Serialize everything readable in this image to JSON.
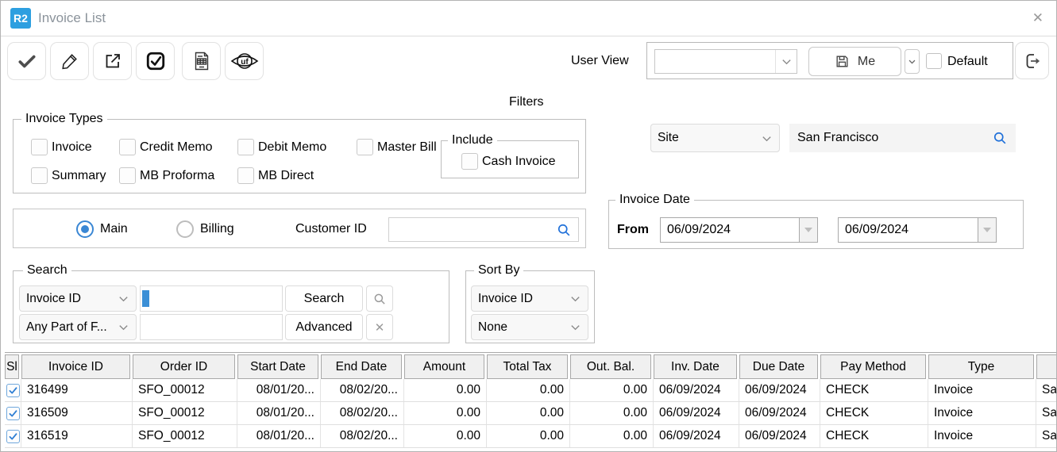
{
  "window": {
    "logo": "R2",
    "title": "Invoice List",
    "close_icon": "✕"
  },
  "toolbar": {
    "icons": [
      "approve-check",
      "edit-pencil",
      "open-external",
      "multi-select-checkbox",
      "invoice-document",
      "uf-view-eye"
    ],
    "user_view": {
      "label": "User View",
      "dropdown_value": "",
      "save_button_label": "Me",
      "default_checkbox_label": "Default",
      "default_checked": false
    }
  },
  "filters": {
    "heading": "Filters",
    "invoice_types": {
      "legend": "Invoice Types",
      "options": [
        {
          "label": "Invoice",
          "checked": false
        },
        {
          "label": "Credit Memo",
          "checked": false
        },
        {
          "label": "Debit Memo",
          "checked": false
        },
        {
          "label": "Master Bill",
          "checked": false
        },
        {
          "label": "Summary",
          "checked": false
        },
        {
          "label": "MB Proforma",
          "checked": false
        },
        {
          "label": "MB Direct",
          "checked": false
        }
      ],
      "include": {
        "legend": "Include",
        "option_label": "Cash Invoice",
        "checked": false
      }
    },
    "site": {
      "dropdown_value": "Site",
      "value": "San Francisco"
    },
    "view_mode": {
      "options": [
        {
          "label": "Main",
          "selected": true
        },
        {
          "label": "Billing",
          "selected": false
        }
      ]
    },
    "customer": {
      "label": "Customer ID",
      "value": ""
    },
    "invoice_date": {
      "legend": "Invoice Date",
      "from_label": "From",
      "from_value": "06/09/2024",
      "to_value": "06/09/2024"
    }
  },
  "search": {
    "legend": "Search",
    "field_dropdown_value": "Invoice ID",
    "match_dropdown_value": "Any Part of F...",
    "input1_value": "",
    "input2_value": "",
    "search_button": "Search",
    "advanced_button": "Advanced",
    "clear_icon": "✕"
  },
  "sort_by": {
    "legend": "Sort By",
    "primary_value": "Invoice ID",
    "secondary_value": "None"
  },
  "table": {
    "headers": [
      "Sl",
      "Invoice ID",
      "Order ID",
      "Start Date",
      "End Date",
      "Amount",
      "Total Tax",
      "Out. Bal.",
      "Inv. Date",
      "Due Date",
      "Pay Method",
      "Type",
      ""
    ],
    "rows": [
      {
        "checked": true,
        "cells": [
          "316499",
          "SFO_00012",
          "08/01/20...",
          "08/02/20...",
          "0.00",
          "0.00",
          "0.00",
          "06/09/2024",
          "06/09/2024",
          "CHECK",
          "Invoice",
          "Sa"
        ]
      },
      {
        "checked": true,
        "cells": [
          "316509",
          "SFO_00012",
          "08/01/20...",
          "08/02/20...",
          "0.00",
          "0.00",
          "0.00",
          "06/09/2024",
          "06/09/2024",
          "CHECK",
          "Invoice",
          "Sa"
        ]
      },
      {
        "checked": true,
        "cells": [
          "316519",
          "SFO_00012",
          "08/01/20...",
          "08/02/20...",
          "0.00",
          "0.00",
          "0.00",
          "06/09/2024",
          "06/09/2024",
          "CHECK",
          "Invoice",
          "Sa"
        ]
      }
    ]
  },
  "colors": {
    "brand_blue": "#2d9fe0",
    "accent_blue": "#3a87d4",
    "search_icon_blue": "#1e6fd9",
    "title_gray": "#8b939b"
  }
}
